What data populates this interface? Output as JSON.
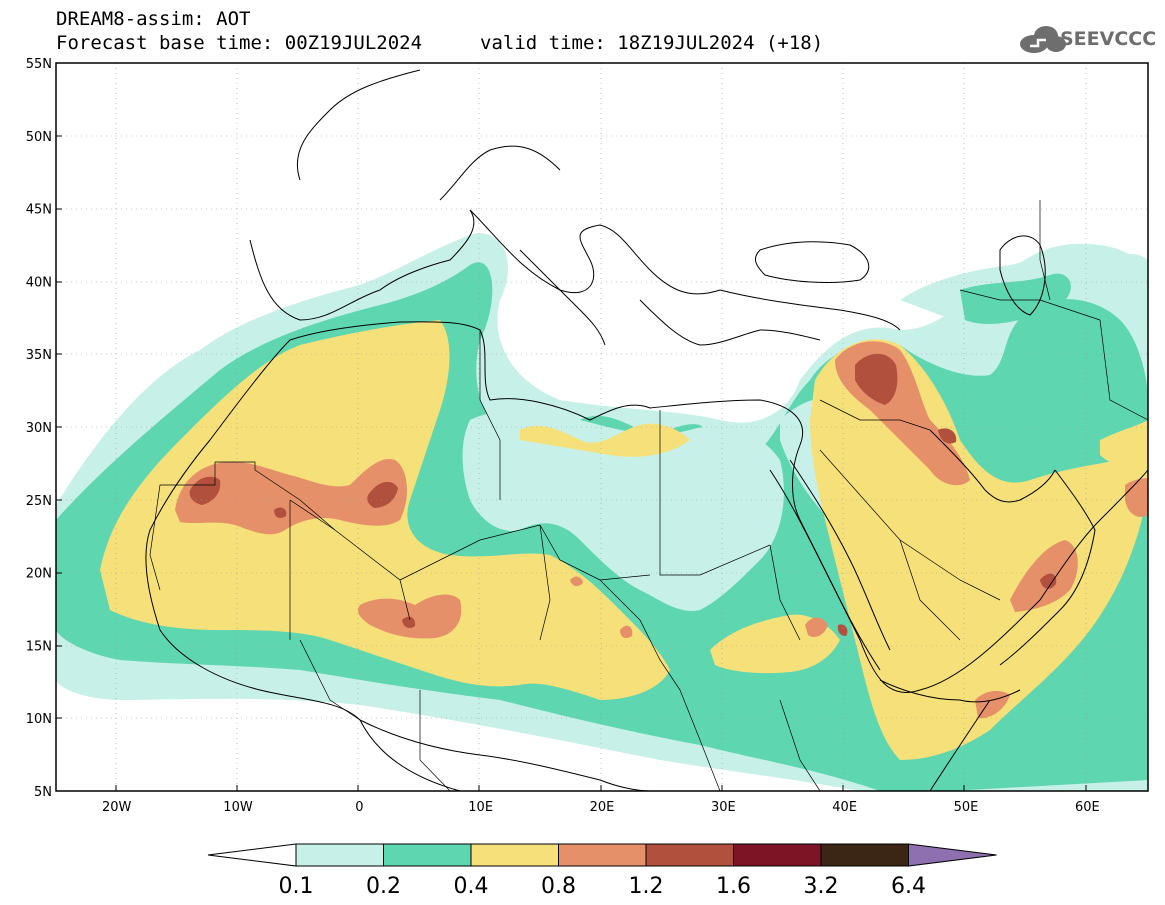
{
  "header": {
    "title": "DREAM8-assim: AOT",
    "base_time": "Forecast base time: 00Z19JUL2024",
    "valid_time": "valid time: 18Z19JUL2024 (+18)"
  },
  "logo": {
    "text": "SEEVCCC",
    "icon": "cloud-icon"
  },
  "map": {
    "lat_labels": [
      "55N",
      "50N",
      "45N",
      "40N",
      "35N",
      "30N",
      "25N",
      "20N",
      "15N",
      "10N",
      "5N"
    ],
    "lon_labels": [
      "20W",
      "10W",
      "0",
      "10E",
      "20E",
      "30E",
      "40E",
      "50E",
      "60E"
    ],
    "lat_range": [
      5,
      55
    ],
    "lon_range": [
      -25,
      65
    ],
    "quantity": "AOT"
  },
  "colorbar": {
    "levels": [
      "0.1",
      "0.2",
      "0.4",
      "0.8",
      "1.2",
      "1.6",
      "3.2",
      "6.4"
    ],
    "colors": [
      "#c7f0e9",
      "#5ed6b0",
      "#f5e07a",
      "#e6906a",
      "#b2503e",
      "#7d1426",
      "#3b2515",
      "#8e6fb0"
    ],
    "under_color": "#ffffff",
    "over_color": "#8e6fb0"
  }
}
